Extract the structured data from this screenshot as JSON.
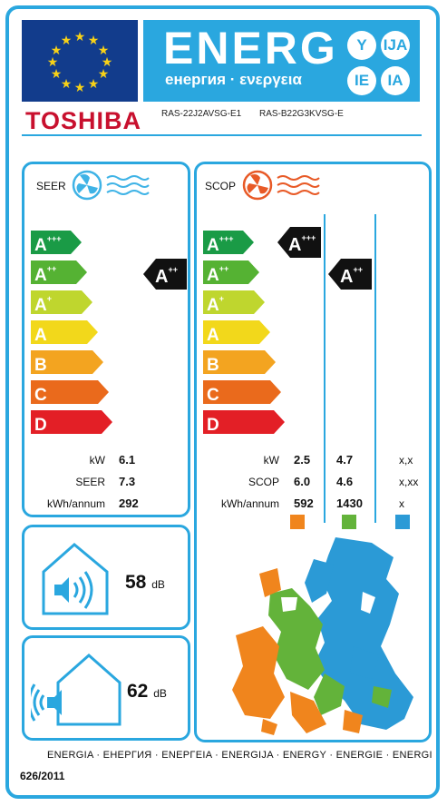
{
  "header": {
    "energy_word": "ENERG",
    "energy_subtitle": "енергия · ενεργεια",
    "languages": [
      "Y",
      "IJA",
      "IE",
      "IA"
    ],
    "brand": "TOSHIBA",
    "model_indoor": "RAS-22J2AVSG-E1",
    "model_outdoor": "RAS-B22G3KVSG-E"
  },
  "scale": [
    {
      "main": "A",
      "sup": "+++",
      "color": "#1a9b46"
    },
    {
      "main": "A",
      "sup": "++",
      "color": "#55b233"
    },
    {
      "main": "A",
      "sup": "+",
      "color": "#bfd62e"
    },
    {
      "main": "A",
      "sup": "",
      "color": "#f2d81b"
    },
    {
      "main": "B",
      "sup": "",
      "color": "#f3a420"
    },
    {
      "main": "C",
      "sup": "",
      "color": "#ea6a1c"
    },
    {
      "main": "D",
      "sup": "",
      "color": "#e31f26"
    }
  ],
  "seer": {
    "title": "SEER",
    "rating": {
      "main": "A",
      "sup": "++"
    },
    "rows": [
      {
        "label": "kW",
        "value": "6.1"
      },
      {
        "label": "SEER",
        "value": "7.3"
      },
      {
        "label": "kWh/annum",
        "value": "292"
      }
    ]
  },
  "scop": {
    "title": "SCOP",
    "ratings": [
      {
        "main": "A",
        "sup": "+++"
      },
      {
        "main": "A",
        "sup": "++"
      }
    ],
    "rows": [
      {
        "label": "kW",
        "v1": "2.5",
        "v2": "4.7",
        "v3": "x,x"
      },
      {
        "label": "SCOP",
        "v1": "6.0",
        "v2": "4.6",
        "v3": "x,xx"
      },
      {
        "label": "kWh/annum",
        "v1": "592",
        "v2": "1430",
        "v3": "x"
      }
    ],
    "zone_colors": [
      "#f0851d",
      "#63b33a",
      "#2b9ad6"
    ]
  },
  "noise": {
    "indoor": {
      "value": "58",
      "unit": "dB"
    },
    "outdoor": {
      "value": "62",
      "unit": "dB"
    }
  },
  "footer": {
    "languages": "ENERGIA · ЕНЕРГИЯ · ΕΝΕΡΓΕΙΑ · ENERGIJA · ENERGY · ENERGIE · ENERGI",
    "regulation": "626/2011"
  },
  "colors": {
    "frame": "#2aa7df",
    "flag": "#123c8c",
    "brand": "#c8102e"
  }
}
